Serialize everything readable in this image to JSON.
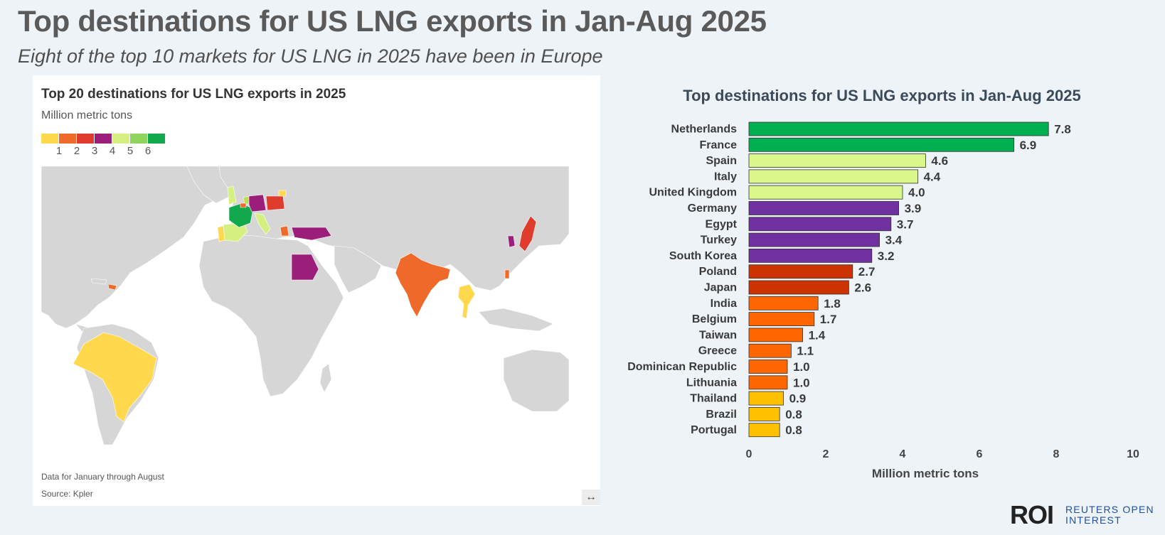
{
  "header": {
    "title": "Top destinations for US LNG exports in Jan-Aug 2025",
    "subtitle": "Eight of the top 10 markets for US LNG in 2025 have been in Europe"
  },
  "map": {
    "title": "Top 20 destinations for US LNG exports in 2025",
    "unit": "Million metric tons",
    "legend": {
      "colors": [
        "#ffd84d",
        "#ef6a2a",
        "#e03c2e",
        "#9b1f7a",
        "#d5f080",
        "#8fd45c",
        "#12a84e"
      ],
      "ticks": [
        "1",
        "2",
        "3",
        "4",
        "5",
        "6"
      ]
    },
    "note": "Data for January through August",
    "source": "Source: Kpler",
    "expand_icon": "↔",
    "colors": {
      "land": "#d6d6d6",
      "ocean": "#ffffff",
      "netherlands": "#b9e04e",
      "france": "#12a84e",
      "spain": "#d5f080",
      "italy": "#d5f080",
      "uk": "#d5f080",
      "germany": "#9b1f7a",
      "poland": "#e03c2e",
      "lithuania": "#ffd84d",
      "greece": "#ef6a2a",
      "turkey": "#9b1f7a",
      "egypt": "#9b1f7a",
      "india": "#ef6a2a",
      "thailand": "#ffd84d",
      "japan": "#e03c2e",
      "south_korea": "#9b1f7a",
      "taiwan": "#ef6a2a",
      "brazil": "#ffd84d",
      "portugal": "#ffd84d",
      "dominican_republic": "#ef6a2a"
    }
  },
  "chart_data": {
    "type": "bar",
    "orientation": "horizontal",
    "title": "Top destinations for US LNG exports in Jan-Aug 2025",
    "xlabel": "Million metric tons",
    "ylabel": "",
    "xlim": [
      0,
      10
    ],
    "xticks": [
      0,
      2,
      4,
      6,
      8,
      10
    ],
    "grid": false,
    "categories": [
      "Netherlands",
      "France",
      "Spain",
      "Italy",
      "United Kingdom",
      "Germany",
      "Egypt",
      "Turkey",
      "South Korea",
      "Poland",
      "Japan",
      "India",
      "Belgium",
      "Taiwan",
      "Greece",
      "Dominican Republic",
      "Lithuania",
      "Thailand",
      "Brazil",
      "Portugal"
    ],
    "values": [
      7.8,
      6.9,
      4.6,
      4.4,
      4.0,
      3.9,
      3.7,
      3.4,
      3.2,
      2.7,
      2.6,
      1.8,
      1.7,
      1.4,
      1.1,
      1.0,
      1.0,
      0.9,
      0.8,
      0.8
    ],
    "labels": [
      "7.8",
      "6.9",
      "4.6",
      "4.4",
      "4.0",
      "3.9",
      "3.7",
      "3.4",
      "3.2",
      "2.7",
      "2.6",
      "1.8",
      "1.7",
      "1.4",
      "1.1",
      "1.0",
      "1.0",
      "0.9",
      "0.8",
      "0.8"
    ],
    "colors": [
      "#00b050",
      "#00b050",
      "#d9f78a",
      "#d9f78a",
      "#d9f78a",
      "#7030a0",
      "#7030a0",
      "#7030a0",
      "#7030a0",
      "#cc3300",
      "#cc3300",
      "#ff6600",
      "#ff6600",
      "#ff6600",
      "#ff6600",
      "#ff6600",
      "#ff6600",
      "#ffc000",
      "#ffc000",
      "#ffc000"
    ]
  },
  "branding": {
    "logo": "ROI",
    "line1": "REUTERS OPEN",
    "line2": "INTEREST"
  }
}
